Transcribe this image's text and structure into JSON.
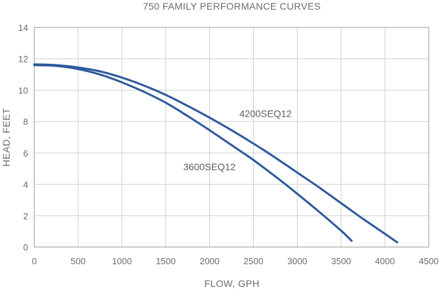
{
  "chart_data": {
    "type": "line",
    "title": "750 FAMILY PERFORMANCE CURVES",
    "xlabel": "FLOW, GPH",
    "ylabel": "HEAD, FEET",
    "xlim": [
      0,
      4500
    ],
    "ylim": [
      0,
      14
    ],
    "xticks": [
      0,
      500,
      1000,
      1500,
      2000,
      2500,
      3000,
      3500,
      4000,
      4500
    ],
    "yticks": [
      0,
      2,
      4,
      6,
      8,
      10,
      12,
      14
    ],
    "grid": true,
    "line_color": "#2e5a9c",
    "series": [
      {
        "name": "4200SEQ12",
        "x": [
          0,
          250,
          500,
          750,
          1000,
          1250,
          1500,
          1750,
          2000,
          2250,
          2500,
          2750,
          3000,
          3250,
          3500,
          3750,
          4000,
          4140
        ],
        "y": [
          11.65,
          11.6,
          11.45,
          11.2,
          10.8,
          10.3,
          9.7,
          9.0,
          8.25,
          7.45,
          6.6,
          5.7,
          4.75,
          3.8,
          2.8,
          1.8,
          0.85,
          0.3
        ]
      },
      {
        "name": "3600SEQ12",
        "x": [
          0,
          250,
          500,
          750,
          1000,
          1250,
          1500,
          1750,
          2000,
          2250,
          2500,
          2750,
          3000,
          3250,
          3500,
          3620
        ],
        "y": [
          11.6,
          11.55,
          11.35,
          11.0,
          10.5,
          9.9,
          9.2,
          8.35,
          7.45,
          6.5,
          5.55,
          4.5,
          3.4,
          2.25,
          1.05,
          0.4
        ]
      }
    ],
    "labels": [
      {
        "series": "4200SEQ12",
        "text": "4200SEQ12",
        "x": 2340,
        "y": 8.3
      },
      {
        "series": "3600SEQ12",
        "text": "3600SEQ12",
        "x": 1700,
        "y": 4.9
      }
    ]
  }
}
